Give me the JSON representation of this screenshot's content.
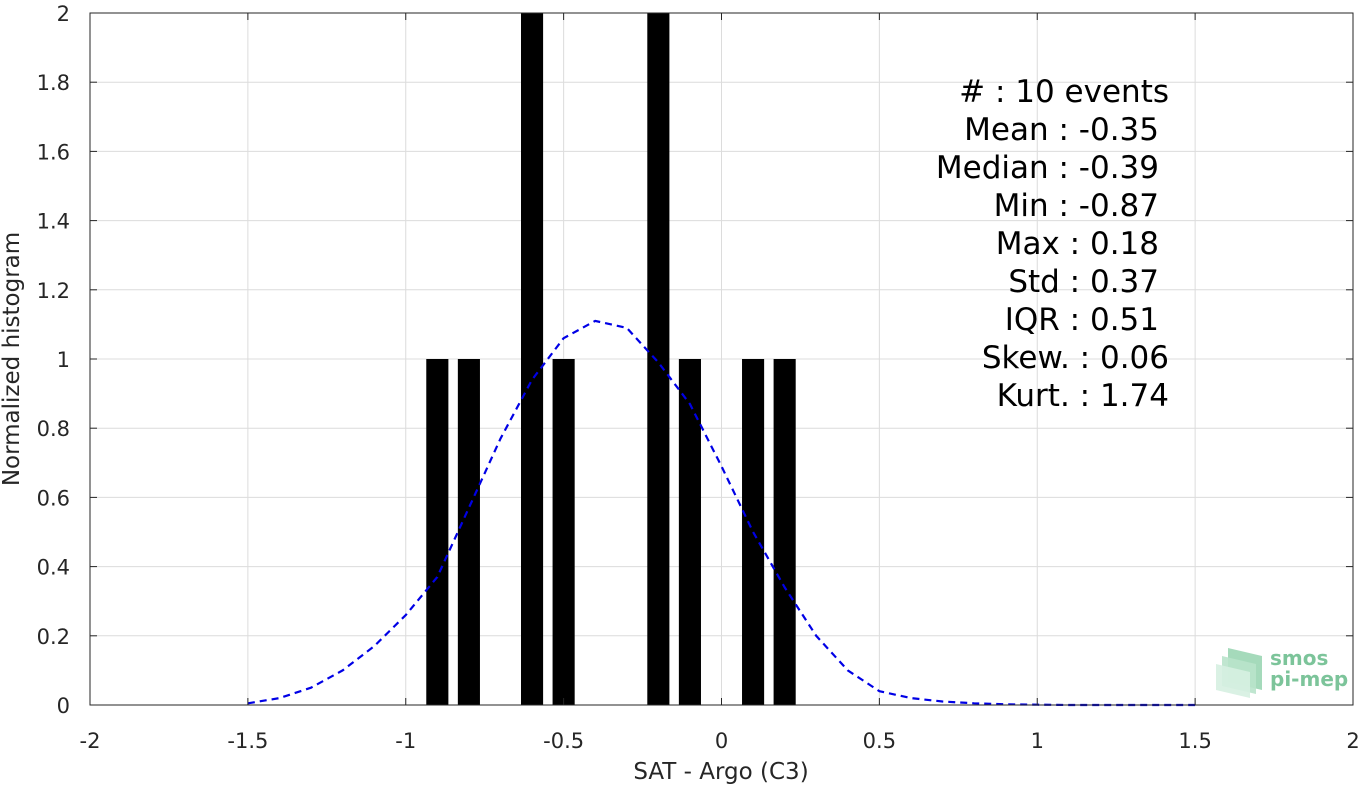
{
  "chart_data": {
    "type": "bar",
    "xlabel": "SAT - Argo (C3)",
    "ylabel": "Normalized histogram",
    "xlim": [
      -2,
      2
    ],
    "ylim": [
      0,
      2
    ],
    "grid": true,
    "xticks": [
      "-2",
      "-1.5",
      "-1",
      "-0.5",
      "0",
      "0.5",
      "1",
      "1.5",
      "2"
    ],
    "yticks": [
      "0",
      "0.2",
      "0.4",
      "0.6",
      "0.8",
      "1",
      "1.2",
      "1.4",
      "1.6",
      "1.8",
      "2"
    ],
    "bins": {
      "x": [
        -0.9,
        -0.8,
        -0.6,
        -0.5,
        -0.2,
        -0.1,
        0.1,
        0.2
      ],
      "width": 0.07,
      "values": [
        1,
        1,
        2,
        1,
        2,
        1,
        1,
        1
      ],
      "color": "#000000"
    },
    "fit": {
      "style": "dashed",
      "color": "#0000e6",
      "x": [
        -1.5,
        -1.4,
        -1.3,
        -1.2,
        -1.1,
        -1.0,
        -0.9,
        -0.8,
        -0.7,
        -0.6,
        -0.5,
        -0.4,
        -0.3,
        -0.2,
        -0.1,
        0.0,
        0.1,
        0.2,
        0.3,
        0.4,
        0.5,
        0.6,
        0.7,
        0.8,
        0.9,
        1.0,
        1.1,
        1.2,
        1.3,
        1.4,
        1.5
      ],
      "y": [
        0.005,
        0.02,
        0.05,
        0.1,
        0.17,
        0.26,
        0.37,
        0.57,
        0.77,
        0.94,
        1.06,
        1.11,
        1.09,
        0.99,
        0.87,
        0.69,
        0.5,
        0.34,
        0.2,
        0.1,
        0.04,
        0.02,
        0.01,
        0.005,
        0.002,
        0.001,
        0.0,
        0.0,
        0.0,
        0.0,
        0.0
      ]
    },
    "annotations": [
      "#  : 10 events",
      "Mean : -0.35",
      "Median : -0.39",
      "Min : -0.87",
      "Max : 0.18",
      "Std : 0.37",
      "IQR : 0.51",
      "Skew. : 0.06",
      "Kurt. : 1.74"
    ]
  },
  "logo": {
    "line1": "smos",
    "line2": "pi-mep",
    "color": "#7cc49a"
  }
}
